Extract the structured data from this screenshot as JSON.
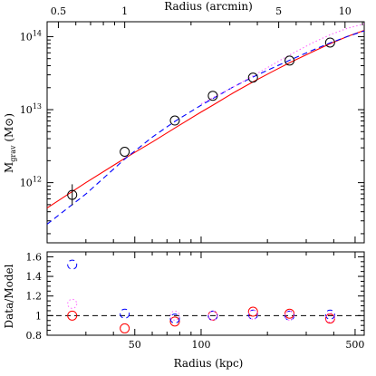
{
  "chart_data": [
    {
      "type": "line",
      "panel": "main",
      "top_axis": {
        "label": "Radius (arcmin)",
        "scale": "log",
        "ticks": [
          {
            "value": 0.5,
            "label": "0.5"
          },
          {
            "value": 1,
            "label": "1"
          },
          {
            "value": 5,
            "label": "5"
          },
          {
            "value": 10,
            "label": "10"
          }
        ]
      },
      "xlabel": "",
      "ylabel": "M",
      "ylabel_subscript": "grav",
      "ylabel_unit_prefix": " (M",
      "ylabel_unit_suffix": ")",
      "xscale": "log",
      "yscale": "log",
      "xlim": [
        20,
        550
      ],
      "ylim": [
        150000000000.0,
        160000000000000.0
      ],
      "y_tick_labels": [
        {
          "value": 1000000000000.0,
          "mantissa": "10",
          "exponent": "12"
        },
        {
          "value": 10000000000000.0,
          "mantissa": "10",
          "exponent": "13"
        },
        {
          "value": 100000000000000.0,
          "mantissa": "10",
          "exponent": "14"
        }
      ],
      "points": [
        {
          "x": 26,
          "y": 680000000000.0,
          "y_err": [
            490000000000.0,
            950000000000.0
          ]
        },
        {
          "x": 45,
          "y": 2650000000000.0
        },
        {
          "x": 76,
          "y": 7100000000000.0
        },
        {
          "x": 113,
          "y": 15500000000000.0
        },
        {
          "x": 172,
          "y": 27500000000000.0
        },
        {
          "x": 252,
          "y": 47000000000000.0
        },
        {
          "x": 385,
          "y": 83000000000000.0
        }
      ],
      "series": [
        {
          "color": "#ff0000",
          "style": "solid",
          "x": [
            20,
            30,
            45,
            60,
            76,
            100,
            113,
            140,
            172,
            210,
            252,
            320,
            385,
            460,
            550
          ],
          "y": [
            450000000000.0,
            1000000000000.0,
            2150000000000.0,
            3600000000000.0,
            5600000000000.0,
            9300000000000.0,
            11500000000000.0,
            17000000000000.0,
            24000000000000.0,
            33000000000000.0,
            44000000000000.0,
            62000000000000.0,
            80000000000000.0,
            100000000000000.0,
            122000000000000.0
          ]
        },
        {
          "color": "#0000ff",
          "style": "dashed",
          "x": [
            20,
            30,
            45,
            60,
            76,
            100,
            113,
            140,
            172,
            210,
            252,
            320,
            385,
            460,
            550
          ],
          "y": [
            270000000000.0,
            700000000000.0,
            2100000000000.0,
            4200000000000.0,
            6900000000000.0,
            11500000000000.0,
            14200000000000.0,
            20500000000000.0,
            28000000000000.0,
            37000000000000.0,
            47500000000000.0,
            65000000000000.0,
            82000000000000.0,
            100000000000000.0,
            120000000000000.0
          ]
        },
        {
          "color": "#ff66ff",
          "style": "dotted",
          "x": [
            100,
            140,
            172,
            210,
            252,
            320,
            385,
            460,
            550
          ],
          "y": [
            12000000000000.0,
            20500000000000.0,
            29000000000000.0,
            41000000000000.0,
            56000000000000.0,
            82000000000000.0,
            106000000000000.0,
            130000000000000.0,
            150000000000000.0
          ]
        }
      ]
    },
    {
      "type": "scatter",
      "panel": "residuals",
      "xlabel": "Radius (kpc)",
      "ylabel": "Data/Model",
      "xscale": "log",
      "xlim": [
        20,
        550
      ],
      "ylim": [
        0.8,
        1.65
      ],
      "x_tick_labels": [
        {
          "value": 50,
          "label": "50"
        },
        {
          "value": 100,
          "label": "100"
        },
        {
          "value": 500,
          "label": "500"
        }
      ],
      "y_tick_labels": [
        {
          "value": 0.8,
          "label": "0.8"
        },
        {
          "value": 1,
          "label": "1"
        },
        {
          "value": 1.2,
          "label": "1.2"
        },
        {
          "value": 1.4,
          "label": "1.4"
        },
        {
          "value": 1.6,
          "label": "1.6"
        }
      ],
      "reference_line": 1.0,
      "series": [
        {
          "color": "#ff0000",
          "style": "solid",
          "x": [
            26,
            45,
            76,
            113,
            172,
            252,
            385
          ],
          "y": [
            1.0,
            0.87,
            0.94,
            1.0,
            1.04,
            1.02,
            0.97
          ]
        },
        {
          "color": "#0000ff",
          "style": "dashed",
          "x": [
            26,
            45,
            76,
            113,
            172,
            252,
            385
          ],
          "y": [
            1.52,
            1.02,
            0.97,
            1.0,
            1.01,
            1.0,
            1.01
          ]
        },
        {
          "color": "#ff66ff",
          "style": "dotted",
          "x": [
            26,
            76,
            113,
            172,
            252,
            385
          ],
          "y": [
            1.12,
            1.0,
            1.0,
            1.01,
            1.0,
            0.98
          ]
        }
      ]
    }
  ]
}
